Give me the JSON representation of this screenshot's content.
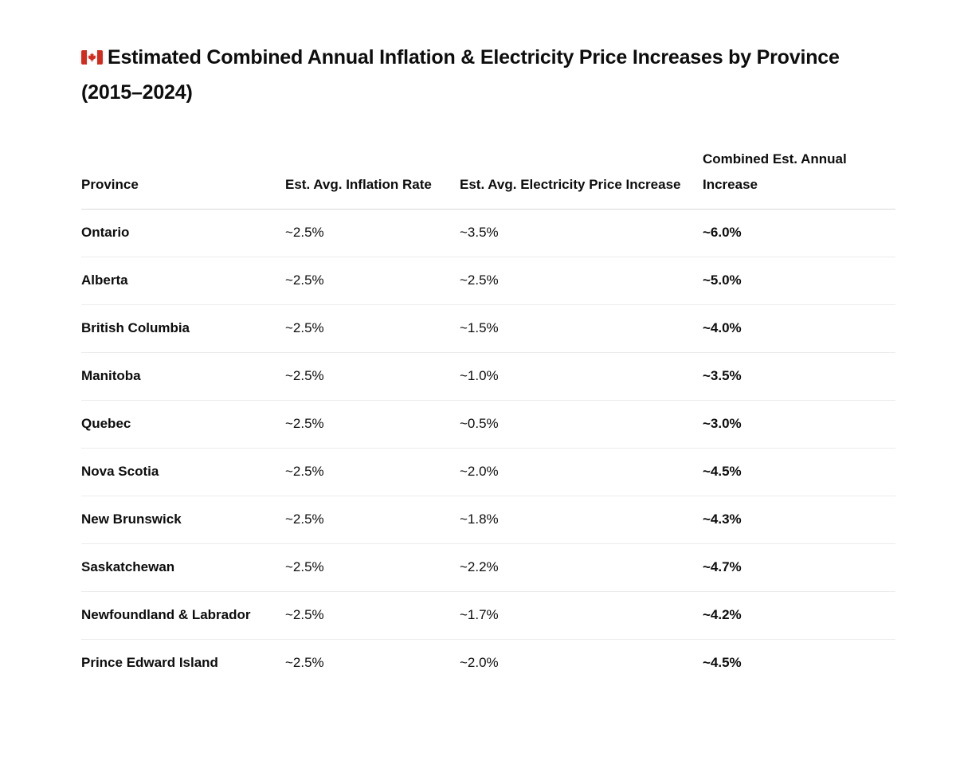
{
  "document": {
    "title": "Estimated Combined Annual Inflation & Electricity Price Increases by Province (2015–2024)",
    "flag_icon": "canada-flag-icon"
  },
  "table": {
    "headers": {
      "province": "Province",
      "inflation": "Est. Avg. Inflation Rate",
      "electricity": "Est. Avg. Electricity Price Increase",
      "combined": "Combined Est. Annual Increase"
    },
    "rows": [
      {
        "province": "Ontario",
        "inflation": "~2.5%",
        "electricity": "~3.5%",
        "combined": "~6.0%"
      },
      {
        "province": "Alberta",
        "inflation": "~2.5%",
        "electricity": "~2.5%",
        "combined": "~5.0%"
      },
      {
        "province": "British Columbia",
        "inflation": "~2.5%",
        "electricity": "~1.5%",
        "combined": "~4.0%"
      },
      {
        "province": "Manitoba",
        "inflation": "~2.5%",
        "electricity": "~1.0%",
        "combined": "~3.5%"
      },
      {
        "province": "Quebec",
        "inflation": "~2.5%",
        "electricity": "~0.5%",
        "combined": "~3.0%"
      },
      {
        "province": "Nova Scotia",
        "inflation": "~2.5%",
        "electricity": "~2.0%",
        "combined": "~4.5%"
      },
      {
        "province": "New Brunswick",
        "inflation": "~2.5%",
        "electricity": "~1.8%",
        "combined": "~4.3%"
      },
      {
        "province": "Saskatchewan",
        "inflation": "~2.5%",
        "electricity": "~2.2%",
        "combined": "~4.7%"
      },
      {
        "province": "Newfoundland & Labrador",
        "inflation": "~2.5%",
        "electricity": "~1.7%",
        "combined": "~4.2%"
      },
      {
        "province": "Prince Edward Island",
        "inflation": "~2.5%",
        "electricity": "~2.0%",
        "combined": "~4.5%"
      }
    ]
  },
  "colors": {
    "flag_red": "#d52b1e",
    "text": "#0d0d0d",
    "row_divider": "#ececec",
    "header_divider": "#d9d9d9"
  }
}
